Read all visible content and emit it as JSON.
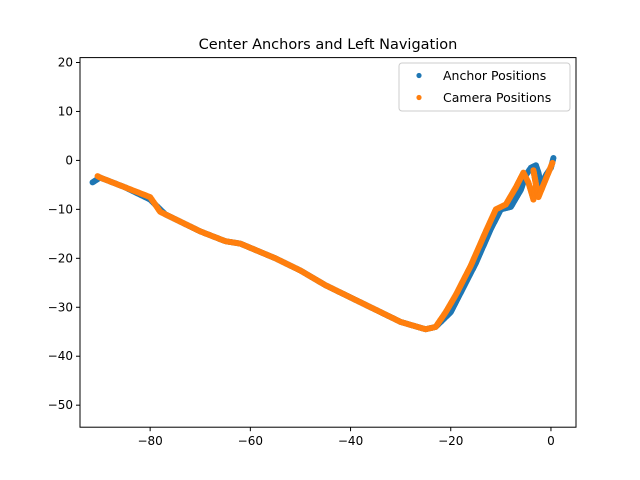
{
  "chart_data": {
    "type": "scatter",
    "title": "Center Anchors and Left Navigation",
    "xlabel": "",
    "ylabel": "",
    "xlim": [
      -94,
      5
    ],
    "ylim": [
      -54.5,
      21
    ],
    "xticks": [
      -80,
      -60,
      -40,
      -20,
      0
    ],
    "yticks": [
      20,
      10,
      0,
      -10,
      -20,
      -30,
      -40,
      -50
    ],
    "grid": false,
    "legend_position": "top-right",
    "series": [
      {
        "name": "Anchor Positions",
        "color": "#1f77b4",
        "x": [
          -91.5,
          -90,
          -85,
          -80,
          -77,
          -75,
          -70,
          -65,
          -62,
          -55,
          -50,
          -45,
          -40,
          -35,
          -30,
          -25,
          -23,
          -20,
          -18,
          -15,
          -12,
          -10,
          -8,
          -6,
          -5,
          -4,
          -3,
          -2.5,
          -2,
          -1,
          0,
          0.5
        ],
        "y": [
          -4.5,
          -3.5,
          -5.5,
          -8,
          -11,
          -12,
          -14.5,
          -16.5,
          -17,
          -20,
          -22.5,
          -25.5,
          -28,
          -30.5,
          -33,
          -34.5,
          -34,
          -31,
          -27,
          -21,
          -14,
          -10,
          -9.5,
          -6,
          -3,
          -1.5,
          -1,
          -2.5,
          -5,
          -3,
          -1.5,
          0.5
        ]
      },
      {
        "name": "Camera Positions",
        "color": "#ff7f0e",
        "x": [
          -90.5,
          -90,
          -85,
          -80,
          -78,
          -75,
          -70,
          -65,
          -62,
          -55,
          -50,
          -45,
          -40,
          -35,
          -30,
          -25,
          -23,
          -21,
          -19,
          -16,
          -13,
          -11,
          -9,
          -7,
          -5.5,
          -4.5,
          -3.5,
          -3,
          -3.5,
          -2.5,
          -1.5,
          -0.5,
          0.3
        ],
        "y": [
          -3.2,
          -3.5,
          -5.5,
          -7.5,
          -10.5,
          -12,
          -14.5,
          -16.5,
          -17,
          -20,
          -22.5,
          -25.5,
          -28,
          -30.5,
          -33,
          -34.5,
          -34,
          -31,
          -27.5,
          -21.5,
          -14.5,
          -10,
          -9,
          -5.5,
          -2.5,
          -4.5,
          -8,
          -5,
          -2,
          -7.5,
          -5,
          -2.5,
          -0.5
        ]
      }
    ]
  }
}
